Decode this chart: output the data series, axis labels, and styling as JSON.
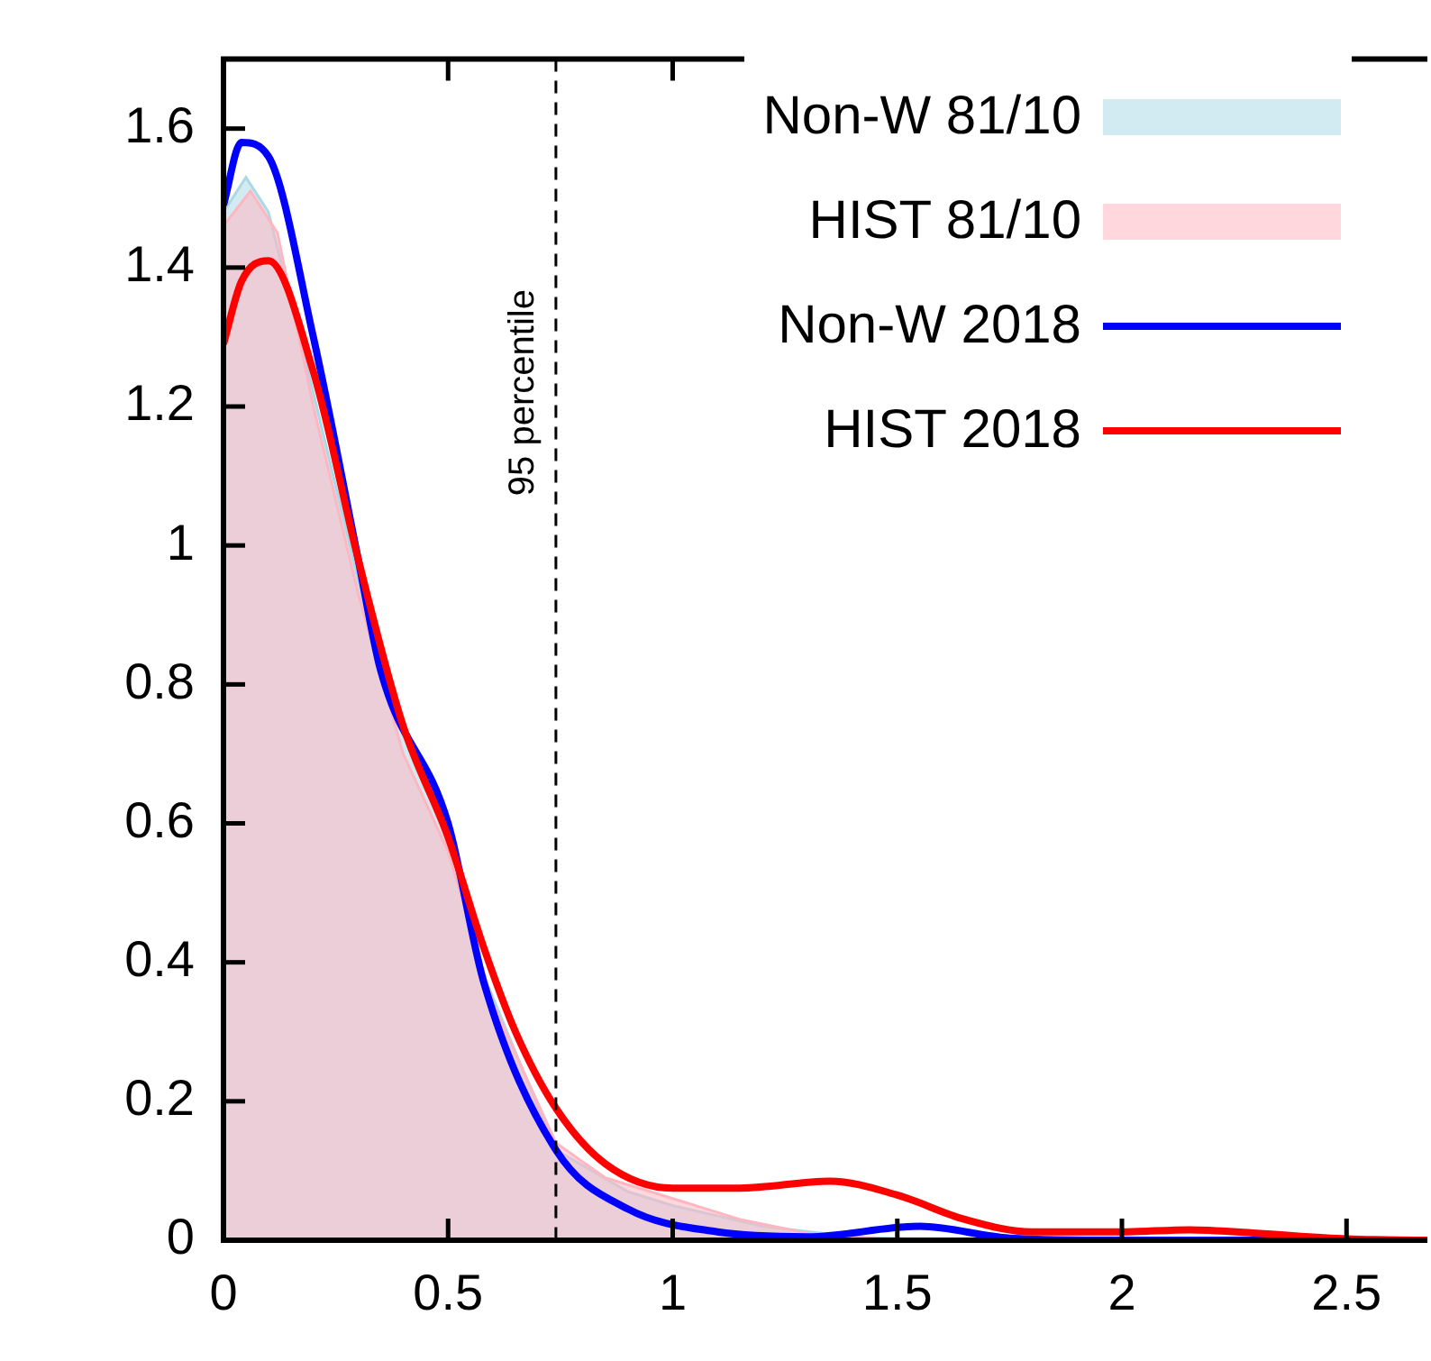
{
  "chart_data": {
    "type": "line",
    "xlim": [
      0,
      2.68
    ],
    "ylim": [
      0,
      1.7
    ],
    "xticks": [
      0,
      0.5,
      1,
      1.5,
      2,
      2.5
    ],
    "yticks": [
      0,
      0.2,
      0.4,
      0.6,
      0.8,
      1,
      1.2,
      1.4,
      1.6
    ],
    "legend": "top right",
    "grid": false,
    "series": [
      {
        "name": "Non-W 81/10",
        "type": "area",
        "color": "#add8e6",
        "x": [
          0,
          0.05,
          0.1,
          0.2,
          0.3,
          0.35,
          0.5,
          0.58,
          0.74,
          0.9,
          1.0,
          1.2,
          1.4,
          1.6,
          2.0,
          2.68
        ],
        "values": [
          1.48,
          1.53,
          1.48,
          1.22,
          0.95,
          0.81,
          0.58,
          0.38,
          0.13,
          0.07,
          0.05,
          0.02,
          0.005,
          0,
          0,
          0
        ]
      },
      {
        "name": "HIST 81/10",
        "type": "area",
        "color": "#ffb6c1",
        "x": [
          0,
          0.06,
          0.12,
          0.2,
          0.3,
          0.4,
          0.5,
          0.6,
          0.74,
          0.85,
          1.0,
          1.15,
          1.3,
          1.5,
          2.0,
          2.68
        ],
        "values": [
          1.46,
          1.51,
          1.45,
          1.2,
          0.93,
          0.7,
          0.56,
          0.34,
          0.14,
          0.09,
          0.06,
          0.03,
          0.01,
          0,
          0,
          0
        ]
      },
      {
        "name": "Non-W 2018",
        "type": "line",
        "color": "#0000ff",
        "x": [
          0,
          0.04,
          0.1,
          0.2,
          0.3,
          0.35,
          0.5,
          0.58,
          0.74,
          0.9,
          1.1,
          1.3,
          1.55,
          1.75,
          2.0,
          2.68
        ],
        "values": [
          1.49,
          1.58,
          1.56,
          1.3,
          0.98,
          0.82,
          0.6,
          0.37,
          0.13,
          0.045,
          0.012,
          0.005,
          0.02,
          0.003,
          0,
          0
        ]
      },
      {
        "name": "HIST 2018",
        "type": "line",
        "color": "#ff0000",
        "x": [
          0,
          0.04,
          0.1,
          0.2,
          0.3,
          0.4,
          0.5,
          0.58,
          0.65,
          0.74,
          0.85,
          1.0,
          1.15,
          1.35,
          1.5,
          1.65,
          1.8,
          2.0,
          2.15,
          2.3,
          2.5,
          2.68
        ],
        "values": [
          1.29,
          1.38,
          1.41,
          1.25,
          0.98,
          0.74,
          0.58,
          0.42,
          0.3,
          0.19,
          0.11,
          0.075,
          0.075,
          0.085,
          0.065,
          0.03,
          0.012,
          0.012,
          0.015,
          0.01,
          0.002,
          0
        ]
      }
    ],
    "ref_lines": [
      {
        "axis": "x",
        "value": 0.74,
        "label": "95 percentile",
        "color": "#000000",
        "line_style": "dashed"
      }
    ]
  }
}
